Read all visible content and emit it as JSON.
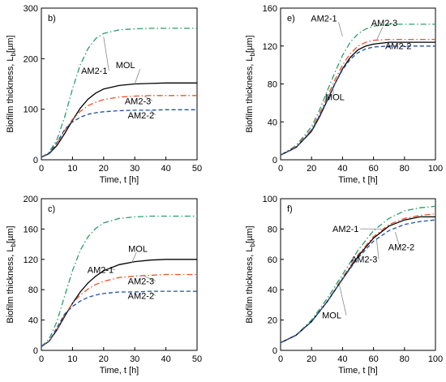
{
  "chart_data": [
    {
      "type": "line",
      "panel_label": "b)",
      "xlabel": "Time, t [h]",
      "ylabel_main": "Biofilm thickness, L",
      "ylabel_sub": "b",
      "ylabel_unit": "[µm]",
      "xlim": [
        0,
        50
      ],
      "ylim": [
        0,
        300
      ],
      "xticks": [
        0,
        10,
        20,
        30,
        40,
        50
      ],
      "yticks": [
        0,
        100,
        200,
        300
      ],
      "series": [
        {
          "name": "MOL",
          "color": "#000000",
          "dash": "solid",
          "x": [
            0,
            2.5,
            5,
            7.5,
            10,
            12.5,
            15,
            17.5,
            20,
            25,
            30,
            35,
            40,
            45,
            50
          ],
          "y": [
            5,
            12,
            28,
            52,
            78,
            102,
            120,
            132,
            140,
            147,
            150,
            151,
            152,
            152,
            152
          ]
        },
        {
          "name": "AM2-1",
          "color": "#2a9d6a",
          "dash": "dashdot",
          "x": [
            0,
            2.5,
            5,
            7.5,
            10,
            12.5,
            15,
            17.5,
            20,
            25,
            30,
            35,
            40,
            45,
            50
          ],
          "y": [
            5,
            15,
            40,
            85,
            140,
            188,
            220,
            240,
            250,
            257,
            259,
            260,
            260,
            260,
            260
          ]
        },
        {
          "name": "AM2-3",
          "color": "#e8542a",
          "dash": "dashdot",
          "x": [
            0,
            2.5,
            5,
            7.5,
            10,
            12.5,
            15,
            17.5,
            20,
            25,
            30,
            35,
            40,
            45,
            50
          ],
          "y": [
            5,
            13,
            32,
            58,
            80,
            96,
            107,
            114,
            119,
            124,
            126,
            127,
            127,
            127,
            127
          ]
        },
        {
          "name": "AM2-2",
          "color": "#1f4fa8",
          "dash": "dashed",
          "x": [
            0,
            2.5,
            5,
            7.5,
            10,
            12.5,
            15,
            17.5,
            20,
            25,
            30,
            35,
            40,
            45,
            50
          ],
          "y": [
            5,
            13,
            34,
            60,
            75,
            84,
            90,
            93,
            95,
            97,
            98,
            98,
            99,
            99,
            99
          ]
        }
      ],
      "labels": [
        {
          "text": "AM2-1",
          "series": 1,
          "lx": 17,
          "ly": 170,
          "tx": 20,
          "ty": 243
        },
        {
          "text": "MOL",
          "series": 0,
          "lx": 27,
          "ly": 181,
          "tx": 30,
          "ty": 150
        },
        {
          "text": "AM2-3",
          "series": 2,
          "lx": 31,
          "ly": 110,
          "tx": 33,
          "ty": 126
        },
        {
          "text": "AM2-2",
          "series": 3,
          "lx": 32,
          "ly": 82,
          "tx": 35,
          "ty": 98
        }
      ]
    },
    {
      "type": "line",
      "panel_label": "e)",
      "xlabel": "Time, t [h]",
      "ylabel_main": "Biofilm thickness, L",
      "ylabel_sub": "b",
      "ylabel_unit": "[µm]",
      "xlim": [
        0,
        100
      ],
      "ylim": [
        0,
        160
      ],
      "xticks": [
        0,
        20,
        40,
        60,
        80,
        100
      ],
      "yticks": [
        0,
        40,
        80,
        120,
        160
      ],
      "series": [
        {
          "name": "AM2-1",
          "color": "#2a9d6a",
          "dash": "dashdot",
          "x": [
            0,
            10,
            20,
            25,
            30,
            35,
            40,
            45,
            50,
            55,
            60,
            70,
            80,
            90,
            100
          ],
          "y": [
            5,
            15,
            35,
            52,
            72,
            92,
            110,
            124,
            133,
            138,
            141,
            143,
            143,
            143,
            143
          ]
        },
        {
          "name": "AM2-3",
          "color": "#e8542a",
          "dash": "dashdot",
          "x": [
            0,
            10,
            20,
            25,
            30,
            35,
            40,
            45,
            50,
            55,
            60,
            70,
            80,
            90,
            100
          ],
          "y": [
            5,
            14,
            32,
            48,
            66,
            84,
            100,
            112,
            120,
            124,
            126,
            127,
            127,
            127,
            127
          ]
        },
        {
          "name": "MOL",
          "color": "#000000",
          "dash": "solid",
          "x": [
            0,
            10,
            20,
            25,
            30,
            35,
            40,
            45,
            50,
            55,
            60,
            70,
            80,
            90,
            100
          ],
          "y": [
            5,
            13,
            30,
            45,
            62,
            80,
            96,
            108,
            116,
            120,
            122,
            124,
            124,
            124,
            124
          ]
        },
        {
          "name": "AM2-2",
          "color": "#1f4fa8",
          "dash": "dashed",
          "x": [
            0,
            10,
            20,
            25,
            30,
            35,
            40,
            45,
            50,
            55,
            60,
            70,
            80,
            90,
            100
          ],
          "y": [
            5,
            13,
            31,
            46,
            63,
            80,
            95,
            106,
            113,
            117,
            119,
            120,
            120,
            120,
            120
          ]
        }
      ],
      "labels": [
        {
          "text": "AM2-1",
          "series": 0,
          "lx": 28,
          "ly": 146,
          "tx": 40,
          "ty": 130
        },
        {
          "text": "AM2-3",
          "series": 1,
          "lx": 67,
          "ly": 141,
          "tx": 62,
          "ty": 126
        },
        {
          "text": "AM2-2",
          "series": 3,
          "lx": 76,
          "ly": 117,
          "tx": 73,
          "ty": 120
        },
        {
          "text": "MOL",
          "series": 2,
          "lx": 35,
          "ly": 63,
          "tx": 34,
          "ty": 76
        }
      ]
    },
    {
      "type": "line",
      "panel_label": "c)",
      "xlabel": "Time, t [h]",
      "ylabel_main": "Biofilm thickness, L",
      "ylabel_sub": "b",
      "ylabel_unit": "[µm]",
      "xlim": [
        0,
        50
      ],
      "ylim": [
        0,
        200
      ],
      "xticks": [
        0,
        10,
        20,
        30,
        40,
        50
      ],
      "yticks": [
        0,
        40,
        80,
        120,
        160,
        200
      ],
      "series": [
        {
          "name": "AM2-1",
          "color": "#2a9d6a",
          "dash": "dashdot",
          "x": [
            0,
            2.5,
            5,
            7.5,
            10,
            12.5,
            15,
            17.5,
            20,
            25,
            30,
            35,
            40,
            45,
            50
          ],
          "y": [
            5,
            15,
            38,
            72,
            105,
            132,
            150,
            161,
            168,
            174,
            176,
            177,
            177,
            177,
            177
          ]
        },
        {
          "name": "MOL",
          "color": "#000000",
          "dash": "solid",
          "x": [
            0,
            2.5,
            5,
            7.5,
            10,
            12.5,
            15,
            17.5,
            20,
            25,
            30,
            35,
            40,
            45,
            50
          ],
          "y": [
            5,
            12,
            27,
            45,
            62,
            77,
            89,
            98,
            105,
            113,
            117,
            119,
            120,
            120,
            120
          ]
        },
        {
          "name": "AM2-3",
          "color": "#e8542a",
          "dash": "dashdot",
          "x": [
            0,
            2.5,
            5,
            7.5,
            10,
            12.5,
            15,
            17.5,
            20,
            25,
            30,
            35,
            40,
            45,
            50
          ],
          "y": [
            5,
            12,
            28,
            47,
            62,
            73,
            81,
            87,
            91,
            96,
            98,
            99,
            100,
            100,
            100
          ]
        },
        {
          "name": "AM2-2",
          "color": "#1f4fa8",
          "dash": "dashed",
          "x": [
            0,
            2.5,
            5,
            7.5,
            10,
            12.5,
            15,
            17.5,
            20,
            25,
            30,
            35,
            40,
            45,
            50
          ],
          "y": [
            5,
            12,
            30,
            48,
            58,
            65,
            70,
            73,
            75,
            77,
            77,
            78,
            78,
            78,
            78
          ]
        }
      ],
      "labels": [
        {
          "text": "MOL",
          "series": 1,
          "lx": 31,
          "ly": 130,
          "tx": 29,
          "ty": 115
        },
        {
          "text": "AM2-1",
          "series": 0,
          "lx": 19,
          "ly": 102,
          "tx": 22,
          "ty": 108
        },
        {
          "text": "AM2-3",
          "series": 2,
          "lx": 32,
          "ly": 87,
          "tx": 33,
          "ty": 98
        },
        {
          "text": "AM2-2",
          "series": 3,
          "lx": 32,
          "ly": 68,
          "tx": 35,
          "ty": 77
        }
      ]
    },
    {
      "type": "line",
      "panel_label": "f)",
      "xlabel": "Time, t [h]",
      "ylabel_main": "Biofilm thickness, L",
      "ylabel_sub": "b",
      "ylabel_unit": "[µm]",
      "xlim": [
        0,
        100
      ],
      "ylim": [
        0,
        100
      ],
      "xticks": [
        0,
        20,
        40,
        60,
        80,
        100
      ],
      "yticks": [
        0,
        20,
        40,
        60,
        80,
        100
      ],
      "series": [
        {
          "name": "AM2-1",
          "color": "#2a9d6a",
          "dash": "dashdot",
          "x": [
            0,
            10,
            20,
            30,
            40,
            50,
            60,
            70,
            80,
            90,
            100
          ],
          "y": [
            5,
            10,
            20,
            34,
            50,
            66,
            79,
            87,
            92,
            94,
            95
          ]
        },
        {
          "name": "AM2-3",
          "color": "#e8542a",
          "dash": "dashdot",
          "x": [
            0,
            10,
            20,
            30,
            40,
            50,
            60,
            70,
            80,
            90,
            100
          ],
          "y": [
            5,
            10,
            19,
            32,
            48,
            63,
            75,
            83,
            87,
            89,
            90
          ]
        },
        {
          "name": "MOL",
          "color": "#000000",
          "dash": "solid",
          "x": [
            0,
            10,
            20,
            30,
            40,
            50,
            60,
            70,
            80,
            90,
            100
          ],
          "y": [
            5,
            10,
            19,
            32,
            47,
            62,
            74,
            82,
            86,
            88,
            88
          ]
        },
        {
          "name": "AM2-2",
          "color": "#1f4fa8",
          "dash": "dashed",
          "x": [
            0,
            10,
            20,
            30,
            40,
            50,
            60,
            70,
            80,
            90,
            100
          ],
          "y": [
            5,
            10,
            19,
            32,
            47,
            61,
            72,
            79,
            83,
            85,
            86
          ]
        }
      ],
      "labels": [
        {
          "text": "AM2-1",
          "series": 0,
          "lx": 42,
          "ly": 78,
          "tx": 65,
          "ty": 80
        },
        {
          "text": "AM2-2",
          "series": 3,
          "lx": 78,
          "ly": 66,
          "tx": 74,
          "ty": 78
        },
        {
          "text": "AM2-3",
          "series": 1,
          "lx": 54,
          "ly": 58,
          "tx": 62,
          "ty": 73
        },
        {
          "text": "MOL",
          "series": 2,
          "lx": 33,
          "ly": 21,
          "tx": 38,
          "ty": 43
        }
      ]
    }
  ]
}
